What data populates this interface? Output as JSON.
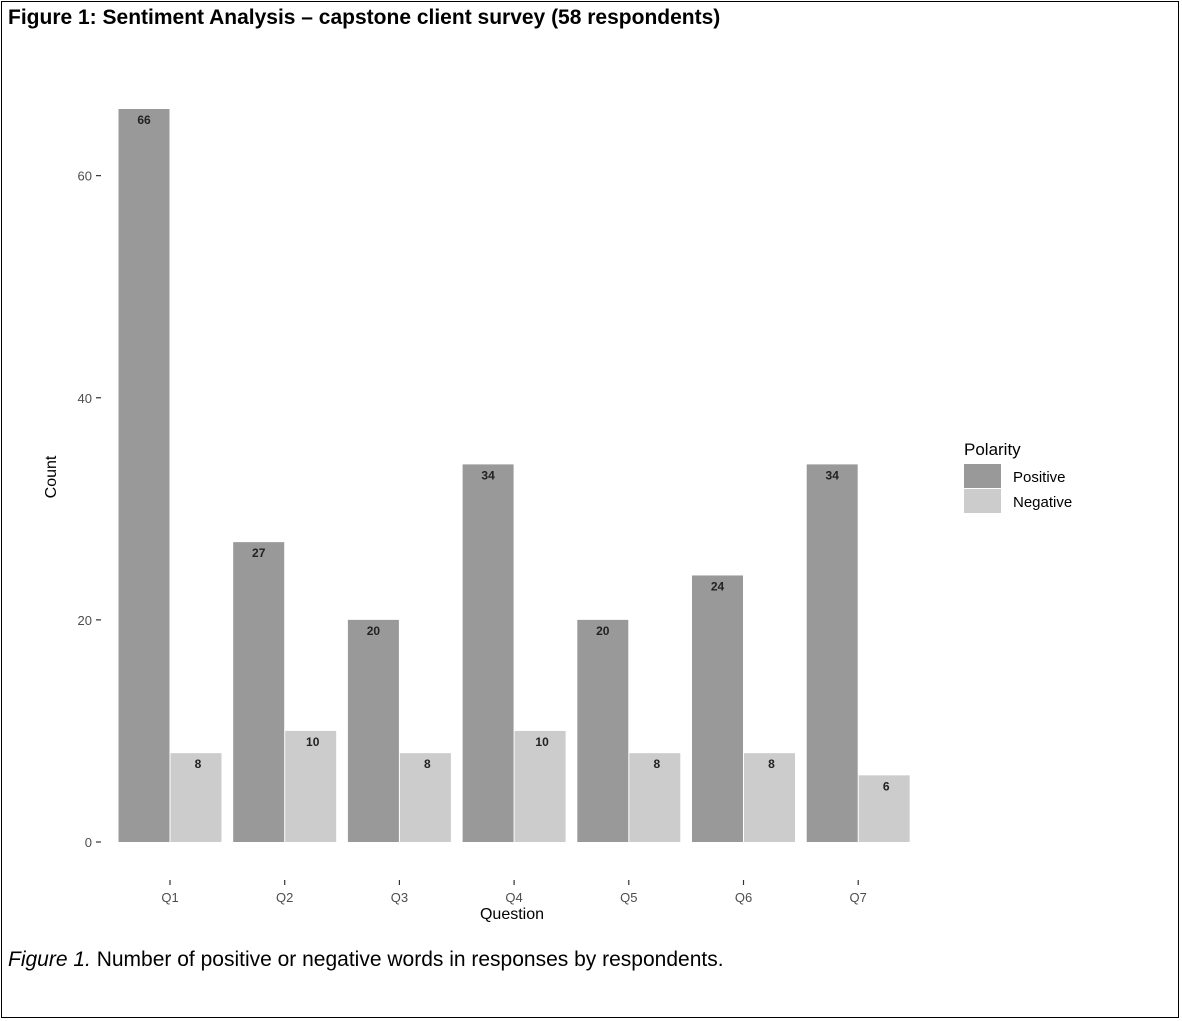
{
  "figure": {
    "title": "Figure 1:  Sentiment Analysis – capstone client survey (58 respondents)",
    "caption_lead": "Figure 1.",
    "caption_text": "  Number of positive or negative words in responses by respondents."
  },
  "chart_data": {
    "type": "bar",
    "title": "",
    "xlabel": "Question",
    "ylabel": "Count",
    "categories": [
      "Q1",
      "Q2",
      "Q3",
      "Q4",
      "Q5",
      "Q6",
      "Q7"
    ],
    "series": [
      {
        "name": "Positive",
        "color": "#999999",
        "values": [
          66,
          27,
          20,
          34,
          20,
          24,
          34
        ]
      },
      {
        "name": "Negative",
        "color": "#cccccc",
        "values": [
          8,
          10,
          8,
          10,
          8,
          8,
          6
        ]
      }
    ],
    "ylim": [
      0,
      66
    ],
    "yticks": [
      0,
      20,
      40,
      60
    ],
    "legend": {
      "title": "Polarity",
      "placement": "right"
    },
    "grid": false,
    "data_labels": true
  }
}
